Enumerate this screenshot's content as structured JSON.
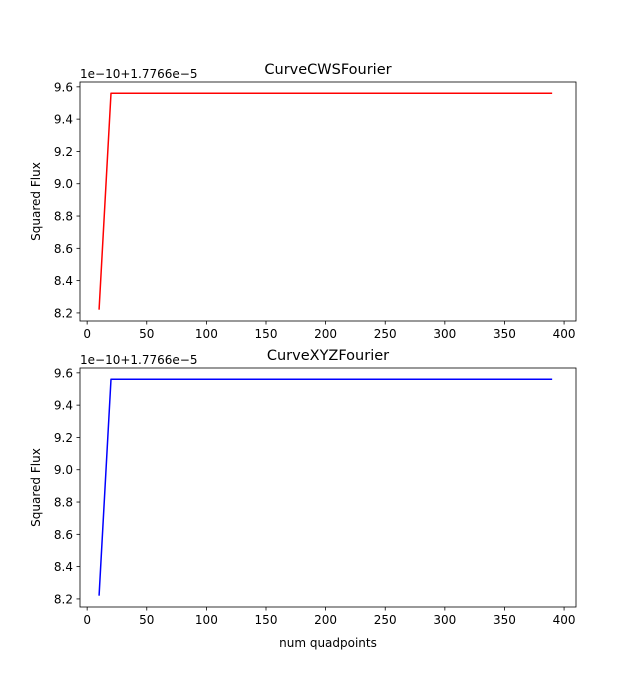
{
  "chart_data": [
    {
      "type": "line",
      "title": "CurveCWSFourier",
      "xlabel": "",
      "ylabel": "Squared Flux",
      "offset_label": "1e−10+1.7766e−5",
      "xlim": [
        -6,
        410
      ],
      "ylim": [
        8.15,
        9.63
      ],
      "xticks": [
        0,
        50,
        100,
        150,
        200,
        250,
        300,
        350,
        400
      ],
      "xtick_labels": [
        "0",
        "50",
        "100",
        "150",
        "200",
        "250",
        "300",
        "350",
        "400"
      ],
      "yticks": [
        8.2,
        8.4,
        8.6,
        8.8,
        9.0,
        9.2,
        9.4,
        9.6
      ],
      "ytick_labels": [
        "8.2",
        "8.4",
        "8.6",
        "8.8",
        "9.0",
        "9.2",
        "9.4",
        "9.6"
      ],
      "grid": false,
      "series": [
        {
          "color": "#ff0000",
          "x": [
            10,
            20,
            390
          ],
          "y": [
            8.22,
            9.56,
            9.56
          ]
        }
      ]
    },
    {
      "type": "line",
      "title": "CurveXYZFourier",
      "xlabel": "num quadpoints",
      "ylabel": "Squared Flux",
      "offset_label": "1e−10+1.7766e−5",
      "xlim": [
        -6,
        410
      ],
      "ylim": [
        8.15,
        9.63
      ],
      "xticks": [
        0,
        50,
        100,
        150,
        200,
        250,
        300,
        350,
        400
      ],
      "xtick_labels": [
        "0",
        "50",
        "100",
        "150",
        "200",
        "250",
        "300",
        "350",
        "400"
      ],
      "yticks": [
        8.2,
        8.4,
        8.6,
        8.8,
        9.0,
        9.2,
        9.4,
        9.6
      ],
      "ytick_labels": [
        "8.2",
        "8.4",
        "8.6",
        "8.8",
        "9.0",
        "9.2",
        "9.4",
        "9.6"
      ],
      "grid": false,
      "series": [
        {
          "color": "#0000ff",
          "x": [
            10,
            20,
            390
          ],
          "y": [
            8.22,
            9.56,
            9.56
          ]
        }
      ]
    }
  ]
}
